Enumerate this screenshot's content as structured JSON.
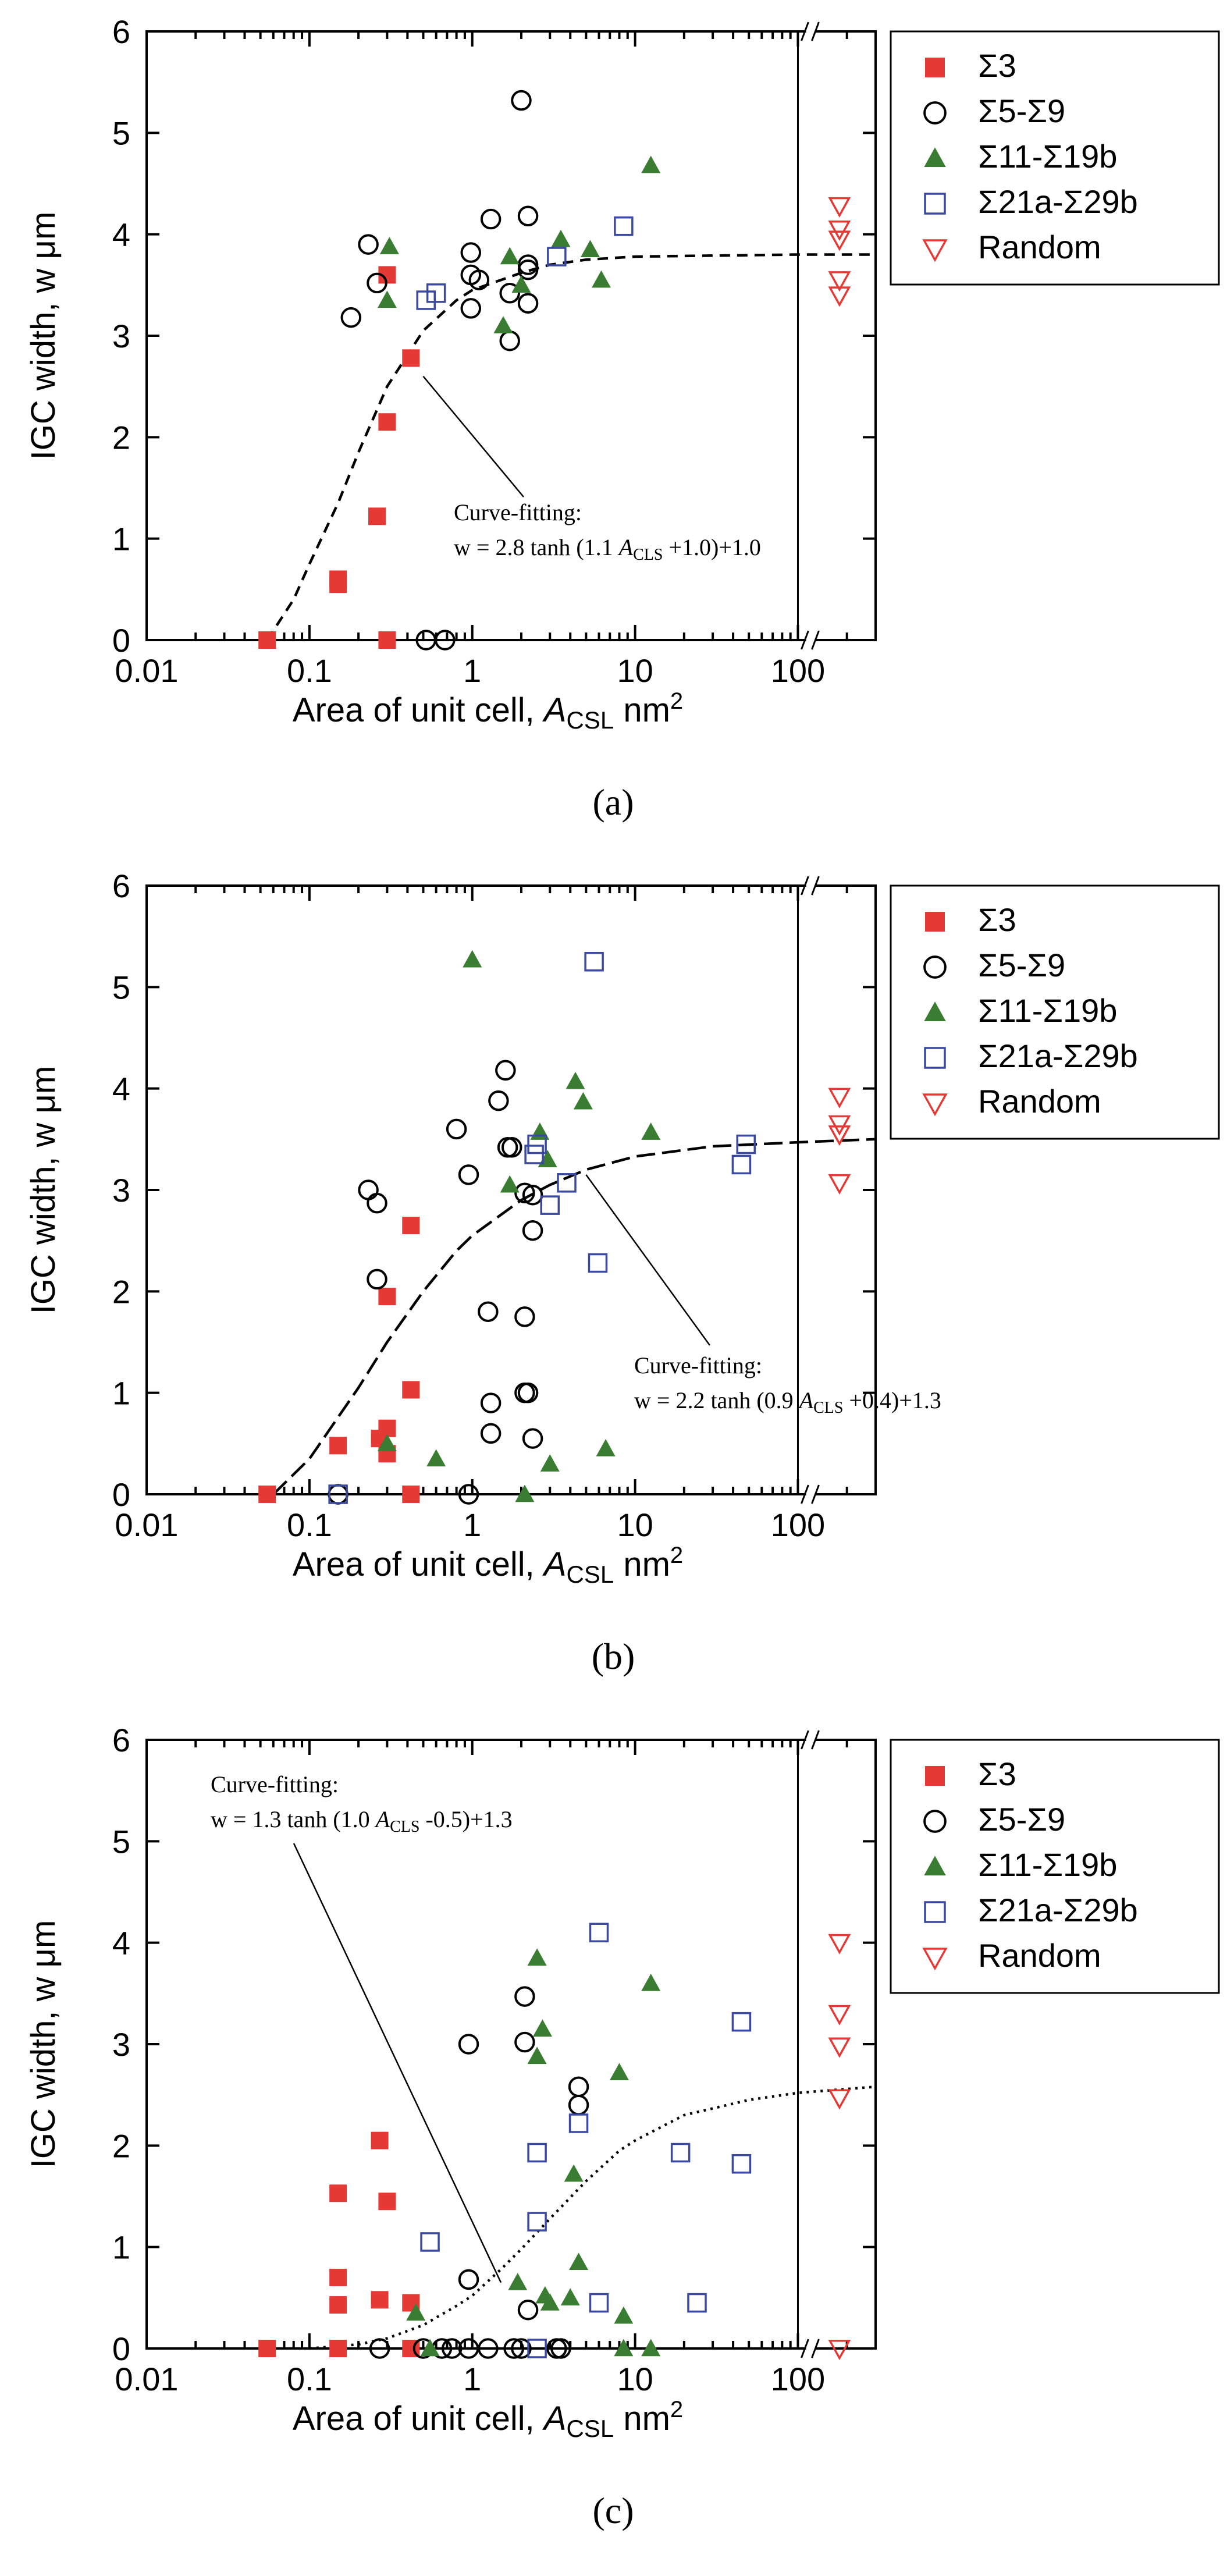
{
  "colors": {
    "s3": "#e53935",
    "s5": "#000000",
    "s11": "#3a7d32",
    "s21": "#3b4aa0",
    "random": "#e53935"
  },
  "chart_data": [
    {
      "type": "scatter",
      "panel_label": "(a)",
      "xlabel_main": "Area of unit cell,",
      "xlabel_var": "A",
      "xlabel_sub": "CSL",
      "xlabel_unit": " nm",
      "xlabel_sup": "2",
      "ylabel": "IGC width, w μm",
      "x_scale": "log",
      "xlim": [
        0.01,
        300
      ],
      "ylim": [
        0,
        6
      ],
      "x_ticks": [
        {
          "v": 0.01,
          "label": "0.01"
        },
        {
          "v": 0.1,
          "label": "0.1"
        },
        {
          "v": 1,
          "label": "1"
        },
        {
          "v": 10,
          "label": "10"
        },
        {
          "v": 100,
          "label": "100"
        }
      ],
      "y_ticks": [
        {
          "v": 0,
          "label": "0"
        },
        {
          "v": 1,
          "label": "1"
        },
        {
          "v": 2,
          "label": "2"
        },
        {
          "v": 3,
          "label": "3"
        },
        {
          "v": 4,
          "label": "4"
        },
        {
          "v": 5,
          "label": "5"
        },
        {
          "v": 6,
          "label": "6"
        }
      ],
      "axis_break_x": 100,
      "legend": [
        "Σ3",
        "Σ5-Σ9",
        "Σ11-Σ19b",
        "Σ21a-Σ29b",
        "Random"
      ],
      "annotation": {
        "line1": "Curve-fitting:",
        "line2_a": "w = 2.8 tanh (1.1 ",
        "line2_var": "A",
        "line2_sub": "CLS",
        "line2_b": " +1.0)+1.0"
      },
      "fit": {
        "style": "dashed",
        "points": [
          [
            0.055,
            0
          ],
          [
            0.08,
            0.4
          ],
          [
            0.1,
            0.75
          ],
          [
            0.15,
            1.35
          ],
          [
            0.2,
            1.85
          ],
          [
            0.3,
            2.5
          ],
          [
            0.5,
            3.05
          ],
          [
            0.8,
            3.35
          ],
          [
            1,
            3.45
          ],
          [
            2,
            3.62
          ],
          [
            3,
            3.7
          ],
          [
            5,
            3.75
          ],
          [
            10,
            3.78
          ],
          [
            30,
            3.79
          ],
          [
            100,
            3.8
          ],
          [
            300,
            3.8
          ]
        ],
        "anchor_x": 0.5,
        "anchor_y": 2.6
      },
      "series": [
        {
          "key": "s3",
          "points": [
            [
              0.055,
              0
            ],
            [
              0.15,
              0.6
            ],
            [
              0.15,
              0.55
            ],
            [
              0.26,
              1.22
            ],
            [
              0.3,
              2.15
            ],
            [
              0.3,
              0
            ],
            [
              0.3,
              3.6
            ],
            [
              0.42,
              2.78
            ]
          ]
        },
        {
          "key": "s5",
          "points": [
            [
              0.18,
              3.18
            ],
            [
              0.23,
              3.9
            ],
            [
              0.26,
              3.52
            ],
            [
              0.52,
              0
            ],
            [
              0.68,
              0
            ],
            [
              0.98,
              3.82
            ],
            [
              0.98,
              3.6
            ],
            [
              0.98,
              3.27
            ],
            [
              1.1,
              3.55
            ],
            [
              1.3,
              4.15
            ],
            [
              1.7,
              3.42
            ],
            [
              1.7,
              2.95
            ],
            [
              2.0,
              5.32
            ],
            [
              2.2,
              3.65
            ],
            [
              2.2,
              3.7
            ],
            [
              2.2,
              4.18
            ],
            [
              2.2,
              3.32
            ]
          ]
        },
        {
          "key": "s11",
          "points": [
            [
              0.31,
              3.88
            ],
            [
              0.3,
              3.35
            ],
            [
              1.55,
              3.1
            ],
            [
              1.7,
              3.78
            ],
            [
              2.0,
              3.5
            ],
            [
              3.5,
              3.95
            ],
            [
              5.3,
              3.85
            ],
            [
              6.2,
              3.55
            ],
            [
              12.5,
              4.68
            ]
          ]
        },
        {
          "key": "s21",
          "points": [
            [
              0.52,
              3.35
            ],
            [
              0.6,
              3.42
            ],
            [
              3.3,
              3.78
            ],
            [
              8.5,
              4.08
            ]
          ]
        },
        {
          "key": "random",
          "points": [
            [
              180,
              4.28
            ],
            [
              180,
              3.95
            ],
            [
              180,
              4.05
            ],
            [
              180,
              3.55
            ],
            [
              180,
              3.4
            ]
          ]
        }
      ]
    },
    {
      "type": "scatter",
      "panel_label": "(b)",
      "xlabel_main": "Area of unit cell,",
      "xlabel_var": "A",
      "xlabel_sub": "CSL",
      "xlabel_unit": " nm",
      "xlabel_sup": "2",
      "ylabel": "IGC width, w μm",
      "x_scale": "log",
      "xlim": [
        0.01,
        300
      ],
      "ylim": [
        0,
        6
      ],
      "x_ticks": [
        {
          "v": 0.01,
          "label": "0.01"
        },
        {
          "v": 0.1,
          "label": "0.1"
        },
        {
          "v": 1,
          "label": "1"
        },
        {
          "v": 10,
          "label": "10"
        },
        {
          "v": 100,
          "label": "100"
        }
      ],
      "y_ticks": [
        {
          "v": 0,
          "label": "0"
        },
        {
          "v": 1,
          "label": "1"
        },
        {
          "v": 2,
          "label": "2"
        },
        {
          "v": 3,
          "label": "3"
        },
        {
          "v": 4,
          "label": "4"
        },
        {
          "v": 5,
          "label": "5"
        },
        {
          "v": 6,
          "label": "6"
        }
      ],
      "axis_break_x": 100,
      "legend": [
        "Σ3",
        "Σ5-Σ9",
        "Σ11-Σ19b",
        "Σ21a-Σ29b",
        "Random"
      ],
      "annotation": {
        "line1": "Curve-fitting:",
        "line2_a": "w = 2.2 tanh (0.9 ",
        "line2_var": "A",
        "line2_sub": "CLS",
        "line2_b": " +0.4)+1.3"
      },
      "fit": {
        "style": "longdash",
        "points": [
          [
            0.06,
            0
          ],
          [
            0.1,
            0.35
          ],
          [
            0.2,
            1.05
          ],
          [
            0.3,
            1.5
          ],
          [
            0.5,
            2.0
          ],
          [
            0.8,
            2.4
          ],
          [
            1,
            2.55
          ],
          [
            2,
            2.9
          ],
          [
            3,
            3.05
          ],
          [
            5,
            3.2
          ],
          [
            10,
            3.33
          ],
          [
            30,
            3.43
          ],
          [
            100,
            3.47
          ],
          [
            300,
            3.5
          ]
        ],
        "anchor_x": 5,
        "anchor_y": 3.15
      },
      "series": [
        {
          "key": "s3",
          "points": [
            [
              0.055,
              0
            ],
            [
              0.15,
              0.48
            ],
            [
              0.27,
              0.55
            ],
            [
              0.3,
              0.4
            ],
            [
              0.3,
              0.65
            ],
            [
              0.3,
              1.95
            ],
            [
              0.42,
              2.65
            ],
            [
              0.42,
              1.03
            ],
            [
              0.42,
              0
            ]
          ]
        },
        {
          "key": "s5",
          "points": [
            [
              0.15,
              0
            ],
            [
              0.23,
              3.0
            ],
            [
              0.26,
              2.87
            ],
            [
              0.26,
              2.12
            ],
            [
              0.8,
              3.6
            ],
            [
              0.95,
              3.15
            ],
            [
              0.95,
              0
            ],
            [
              1.25,
              1.8
            ],
            [
              1.3,
              0.9
            ],
            [
              1.3,
              0.6
            ],
            [
              1.45,
              3.88
            ],
            [
              1.6,
              4.18
            ],
            [
              1.65,
              3.42
            ],
            [
              1.75,
              3.42
            ],
            [
              2.1,
              2.97
            ],
            [
              2.1,
              1.75
            ],
            [
              2.1,
              1.0
            ],
            [
              2.2,
              1.0
            ],
            [
              2.35,
              2.95
            ],
            [
              2.35,
              2.6
            ],
            [
              2.35,
              0.55
            ]
          ]
        },
        {
          "key": "s11",
          "points": [
            [
              0.3,
              0.5
            ],
            [
              0.6,
              0.35
            ],
            [
              1.0,
              5.27
            ],
            [
              1.7,
              3.05
            ],
            [
              2.1,
              0
            ],
            [
              2.6,
              3.57
            ],
            [
              2.9,
              3.3
            ],
            [
              3.0,
              0.3
            ],
            [
              4.3,
              4.07
            ],
            [
              4.8,
              3.87
            ],
            [
              6.6,
              0.45
            ],
            [
              12.5,
              3.57
            ]
          ]
        },
        {
          "key": "s21",
          "points": [
            [
              0.15,
              0
            ],
            [
              2.4,
              3.35
            ],
            [
              2.5,
              3.45
            ],
            [
              3.0,
              2.85
            ],
            [
              3.8,
              3.07
            ],
            [
              5.6,
              5.25
            ],
            [
              5.9,
              2.28
            ],
            [
              45,
              3.25
            ],
            [
              48,
              3.45
            ]
          ]
        },
        {
          "key": "random",
          "points": [
            [
              180,
              3.92
            ],
            [
              180,
              3.65
            ],
            [
              180,
              3.55
            ],
            [
              180,
              3.07
            ]
          ]
        }
      ]
    },
    {
      "type": "scatter",
      "panel_label": "(c)",
      "xlabel_main": "Area of unit cell,",
      "xlabel_var": "A",
      "xlabel_sub": "CSL",
      "xlabel_unit": " nm",
      "xlabel_sup": "2",
      "ylabel": "IGC width, w μm",
      "x_scale": "log",
      "xlim": [
        0.01,
        300
      ],
      "ylim": [
        0,
        6
      ],
      "x_ticks": [
        {
          "v": 0.01,
          "label": "0.01"
        },
        {
          "v": 0.1,
          "label": "0.1"
        },
        {
          "v": 1,
          "label": "1"
        },
        {
          "v": 10,
          "label": "10"
        },
        {
          "v": 100,
          "label": "100"
        }
      ],
      "y_ticks": [
        {
          "v": 0,
          "label": "0"
        },
        {
          "v": 1,
          "label": "1"
        },
        {
          "v": 2,
          "label": "2"
        },
        {
          "v": 3,
          "label": "3"
        },
        {
          "v": 4,
          "label": "4"
        },
        {
          "v": 5,
          "label": "5"
        },
        {
          "v": 6,
          "label": "6"
        }
      ],
      "axis_break_x": 100,
      "legend": [
        "Σ3",
        "Σ5-Σ9",
        "Σ11-Σ19b",
        "Σ21a-Σ29b",
        "Random"
      ],
      "annotation": {
        "line1": "Curve-fitting:",
        "line2_a": "w = 1.3 tanh (1.0 ",
        "line2_var": "A",
        "line2_sub": "CLS",
        "line2_b": " -0.5)+1.3"
      },
      "fit": {
        "style": "dotted",
        "points": [
          [
            0.1,
            0
          ],
          [
            0.2,
            0.04
          ],
          [
            0.3,
            0.1
          ],
          [
            0.5,
            0.23
          ],
          [
            0.8,
            0.42
          ],
          [
            1,
            0.52
          ],
          [
            1.5,
            0.78
          ],
          [
            2,
            0.98
          ],
          [
            3,
            1.28
          ],
          [
            5,
            1.65
          ],
          [
            8,
            1.95
          ],
          [
            10,
            2.05
          ],
          [
            20,
            2.3
          ],
          [
            50,
            2.45
          ],
          [
            100,
            2.52
          ],
          [
            300,
            2.58
          ]
        ],
        "anchor_x": 1.5,
        "anchor_y": 0.65
      },
      "series": [
        {
          "key": "s3",
          "points": [
            [
              0.055,
              0
            ],
            [
              0.15,
              1.53
            ],
            [
              0.15,
              0.7
            ],
            [
              0.15,
              0.43
            ],
            [
              0.15,
              0
            ],
            [
              0.27,
              2.05
            ],
            [
              0.27,
              0.48
            ],
            [
              0.3,
              1.45
            ],
            [
              0.42,
              0.45
            ],
            [
              0.42,
              0
            ]
          ]
        },
        {
          "key": "s5",
          "points": [
            [
              0.27,
              0
            ],
            [
              0.5,
              0
            ],
            [
              0.65,
              0
            ],
            [
              0.75,
              0
            ],
            [
              0.95,
              3.0
            ],
            [
              0.95,
              0.68
            ],
            [
              0.95,
              0
            ],
            [
              1.25,
              0
            ],
            [
              1.8,
              0
            ],
            [
              2.0,
              0
            ],
            [
              2.1,
              3.47
            ],
            [
              2.1,
              3.02
            ],
            [
              2.2,
              0.38
            ],
            [
              3.3,
              0
            ],
            [
              3.5,
              0
            ],
            [
              4.5,
              2.58
            ],
            [
              4.5,
              2.4
            ]
          ]
        },
        {
          "key": "s11",
          "points": [
            [
              0.45,
              0.35
            ],
            [
              0.55,
              0
            ],
            [
              1.9,
              0.65
            ],
            [
              2.5,
              3.85
            ],
            [
              2.5,
              2.88
            ],
            [
              2.7,
              3.15
            ],
            [
              2.8,
              0.52
            ],
            [
              3.0,
              0.45
            ],
            [
              4.0,
              0.5
            ],
            [
              4.2,
              1.72
            ],
            [
              4.5,
              0.85
            ],
            [
              8.0,
              2.72
            ],
            [
              8.5,
              0.32
            ],
            [
              8.5,
              0
            ],
            [
              12.5,
              3.6
            ],
            [
              12.5,
              0
            ]
          ]
        },
        {
          "key": "s21",
          "points": [
            [
              0.55,
              1.05
            ],
            [
              2.5,
              1.93
            ],
            [
              2.5,
              1.25
            ],
            [
              2.5,
              0
            ],
            [
              4.5,
              2.22
            ],
            [
              6.0,
              4.1
            ],
            [
              6.0,
              0.45
            ],
            [
              19,
              1.93
            ],
            [
              24,
              0.45
            ],
            [
              45,
              3.22
            ],
            [
              45,
              1.82
            ]
          ]
        },
        {
          "key": "random",
          "points": [
            [
              180,
              4.0
            ],
            [
              180,
              3.3
            ],
            [
              180,
              2.98
            ],
            [
              180,
              2.47
            ],
            [
              180,
              0
            ]
          ]
        }
      ]
    }
  ]
}
